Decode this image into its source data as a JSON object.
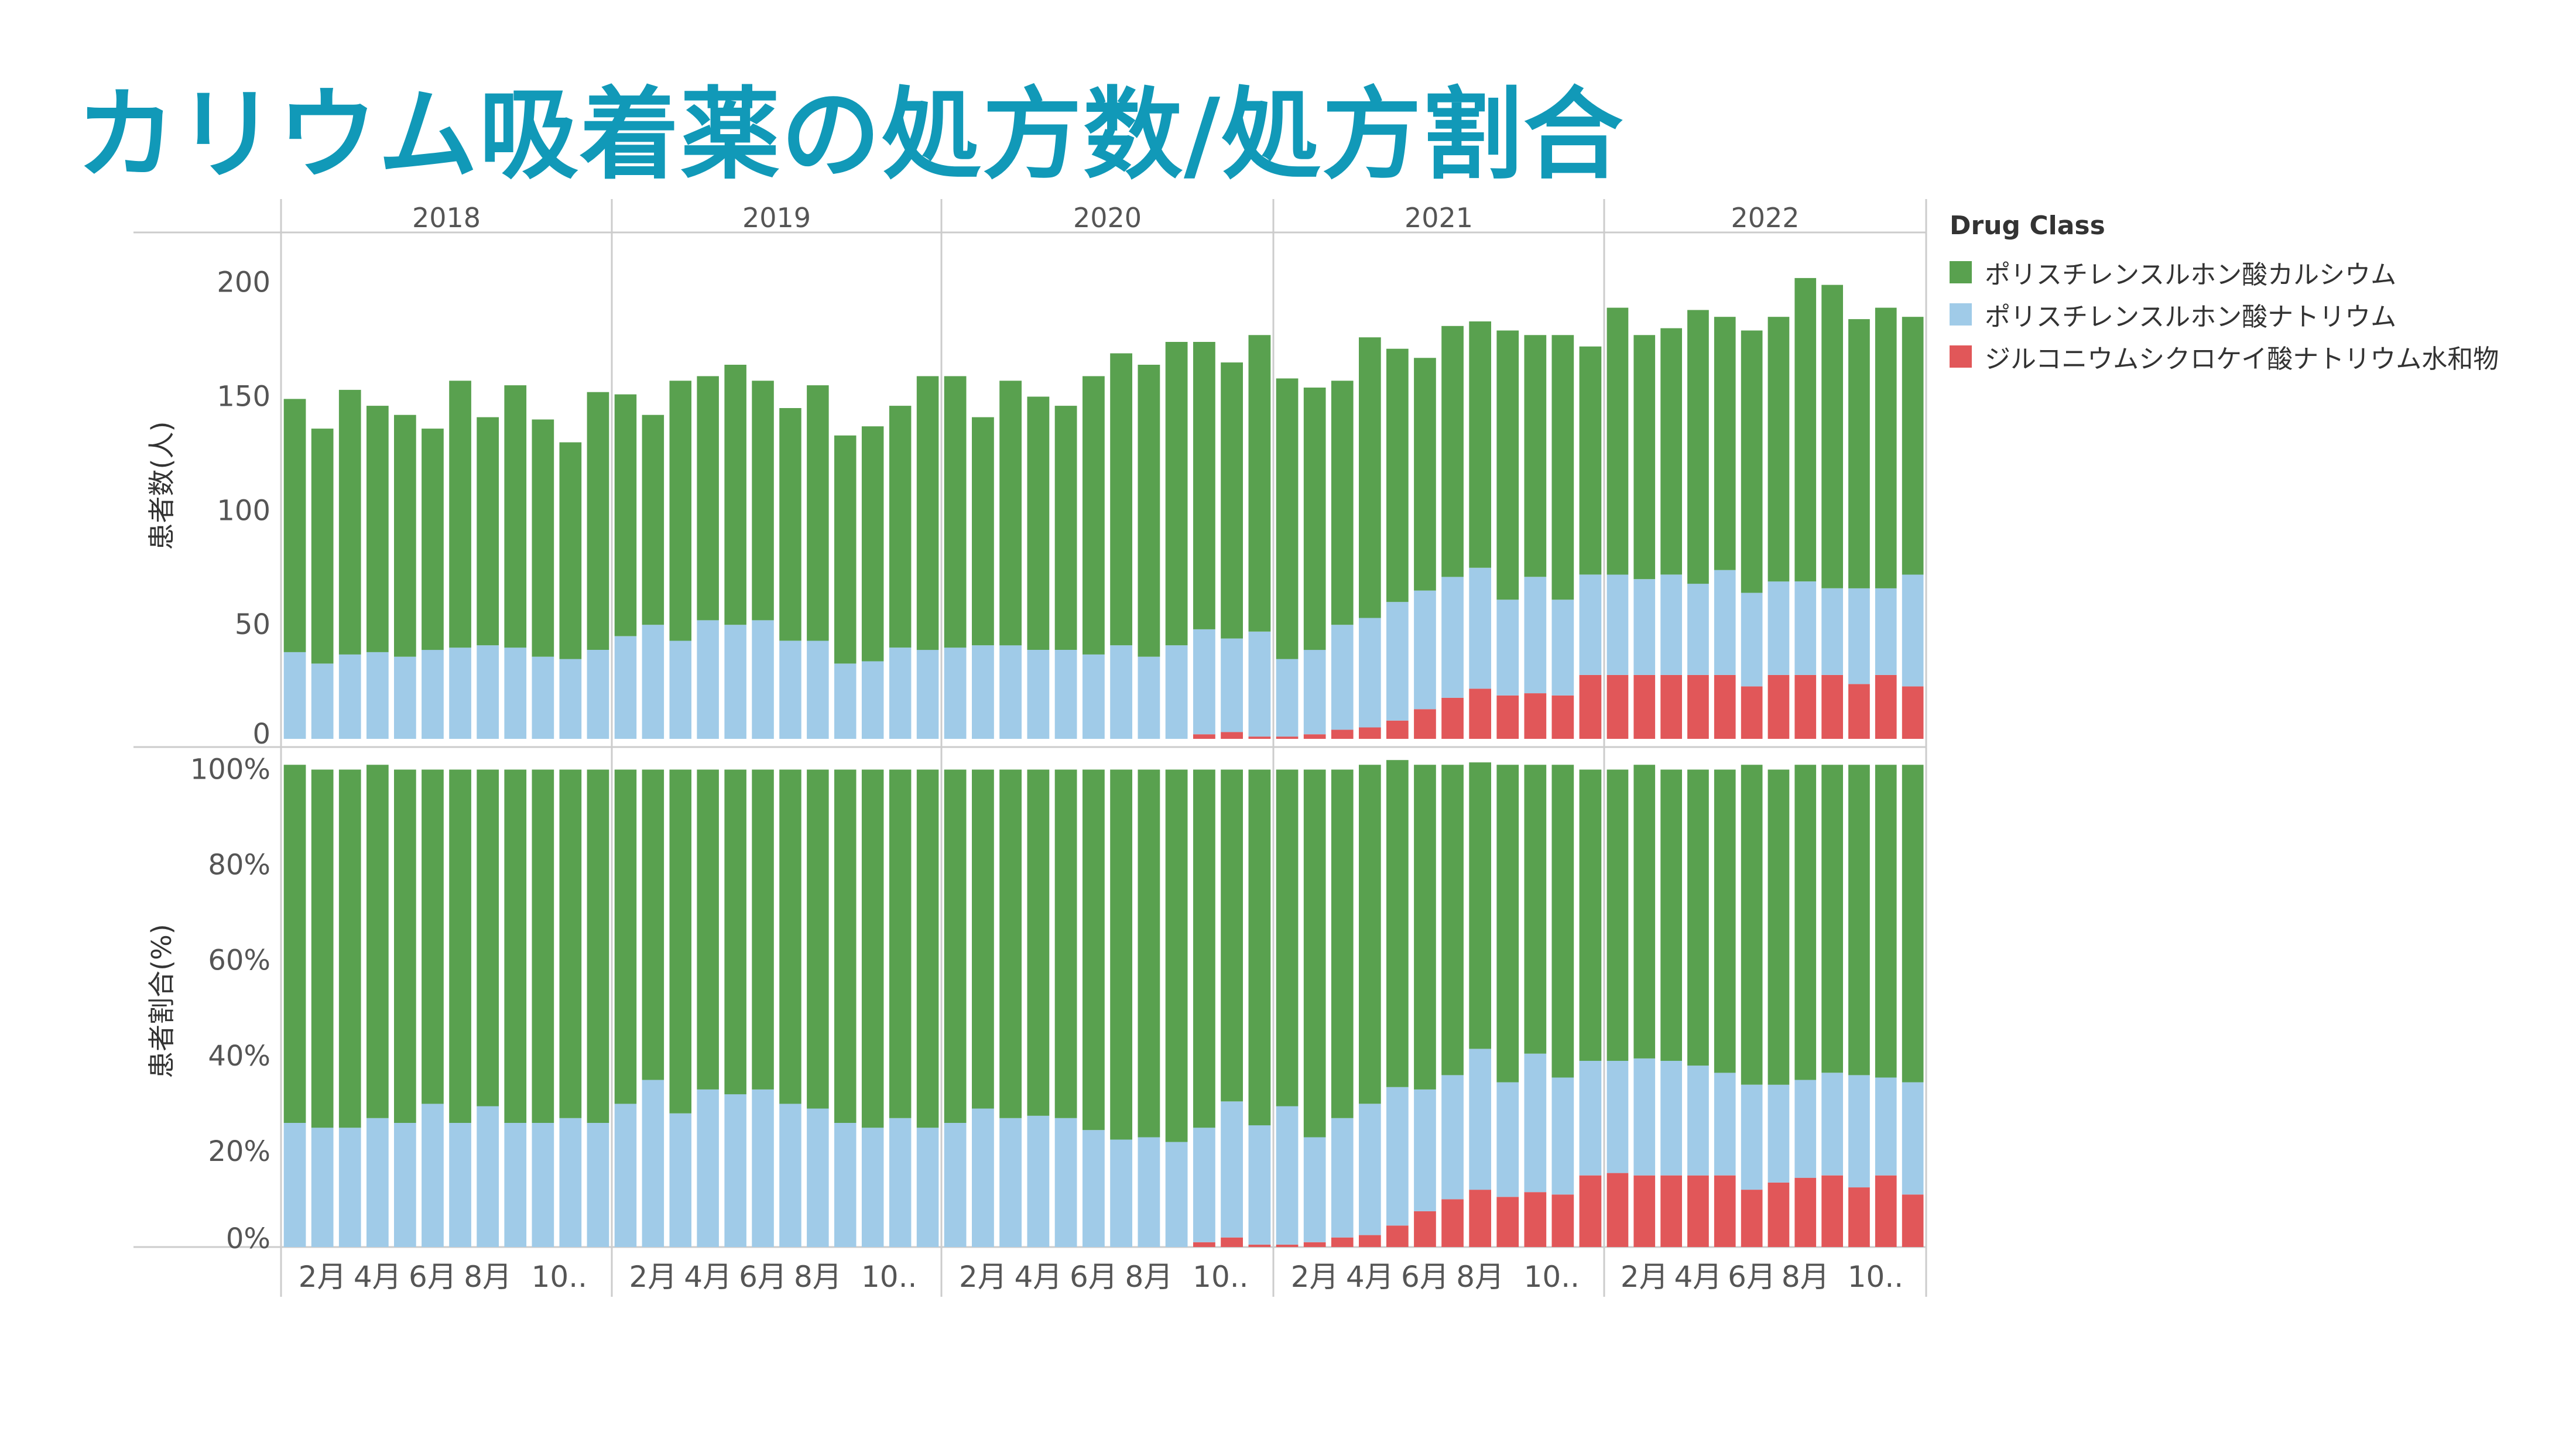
{
  "title": "カリウム吸着薬の処方数/処方割合",
  "legend": {
    "title": "Drug Class",
    "items": [
      {
        "label": "ポリスチレンスルホン酸カルシウム",
        "color": "#59a14f"
      },
      {
        "label": "ポリスチレンスルホン酸ナトリウム",
        "color": "#a0cbe8"
      },
      {
        "label": "ジルコニウムシクロケイ酸ナトリウム水和物",
        "color": "#e15759"
      }
    ]
  },
  "chart_data": [
    {
      "type": "bar",
      "stacked": true,
      "ylabel": "患者数(人)",
      "yticks": [
        0,
        50,
        100,
        150,
        200
      ],
      "ylim": [
        0,
        222
      ],
      "years": [
        "2018",
        "2019",
        "2020",
        "2021",
        "2022"
      ],
      "month_ticks": [
        "2月",
        "4月",
        "6月",
        "8月",
        "10.."
      ],
      "series": [
        {
          "name": "ジルコニウムシクロケイ酸ナトリウム水和物",
          "values": [
            0,
            0,
            0,
            0,
            0,
            0,
            0,
            0,
            0,
            0,
            0,
            0,
            0,
            0,
            0,
            0,
            0,
            0,
            0,
            0,
            0,
            0,
            0,
            0,
            0,
            0,
            0,
            0,
            0,
            0,
            0,
            0,
            0,
            2,
            3,
            1,
            1,
            2,
            4,
            5,
            8,
            13,
            18,
            22,
            19,
            20,
            19,
            28,
            28,
            28,
            28,
            28,
            28,
            23,
            28,
            28,
            28,
            24,
            28,
            23
          ]
        },
        {
          "name": "ポリスチレンスルホン酸ナトリウム",
          "values": [
            38,
            33,
            37,
            38,
            36,
            39,
            40,
            41,
            40,
            36,
            35,
            39,
            45,
            50,
            43,
            52,
            50,
            52,
            43,
            43,
            33,
            34,
            40,
            39,
            40,
            41,
            41,
            39,
            39,
            37,
            41,
            36,
            41,
            46,
            41,
            46,
            34,
            37,
            46,
            48,
            52,
            52,
            53,
            53,
            42,
            51,
            42,
            44,
            44,
            42,
            44,
            40,
            46,
            41,
            41,
            41,
            38,
            42,
            38,
            49
          ]
        },
        {
          "name": "ポリスチレンスルホン酸カルシウム",
          "values": [
            111,
            103,
            116,
            108,
            106,
            97,
            117,
            100,
            115,
            104,
            95,
            113,
            106,
            92,
            114,
            107,
            114,
            105,
            102,
            112,
            100,
            103,
            106,
            120,
            119,
            100,
            116,
            111,
            107,
            122,
            128,
            128,
            133,
            126,
            121,
            130,
            123,
            115,
            107,
            123,
            111,
            102,
            110,
            108,
            118,
            106,
            116,
            100,
            117,
            107,
            108,
            120,
            111,
            115,
            116,
            133,
            133,
            118,
            123,
            113
          ]
        }
      ]
    },
    {
      "type": "bar",
      "stacked": true,
      "ylabel": "患者割合(%)",
      "yticks": [
        "0%",
        "20%",
        "40%",
        "60%",
        "80%",
        "100%"
      ],
      "ylim": [
        0,
        103
      ],
      "series": [
        {
          "name": "ジルコニウムシクロケイ酸ナトリウム水和物",
          "values": [
            0,
            0,
            0,
            0,
            0,
            0,
            0,
            0,
            0,
            0,
            0,
            0,
            0,
            0,
            0,
            0,
            0,
            0,
            0,
            0,
            0,
            0,
            0,
            0,
            0,
            0,
            0,
            0,
            0,
            0,
            0,
            0,
            0,
            1,
            2,
            0.5,
            0.5,
            1,
            2,
            2.5,
            4.5,
            7.5,
            10,
            12,
            10.5,
            11.5,
            11,
            15,
            15.5,
            15,
            15,
            15,
            15,
            12,
            13.5,
            14.5,
            15,
            12.5,
            15,
            11
          ]
        },
        {
          "name": "ポリスチレンスルホン酸ナトリウム",
          "values": [
            26,
            25,
            25,
            27,
            26,
            30,
            26,
            29.5,
            26,
            26,
            27,
            26,
            30,
            35,
            28,
            33,
            32,
            33,
            30,
            29,
            26,
            25,
            27,
            25,
            26,
            29,
            27,
            27.5,
            27,
            24.5,
            22.5,
            23,
            22,
            24,
            28.5,
            25,
            29,
            22,
            25,
            27.5,
            29,
            25.5,
            26,
            29.5,
            24,
            29,
            24.5,
            24,
            23.5,
            24.5,
            24,
            23,
            21.5,
            22,
            20.5,
            20.5,
            21.5,
            23.5,
            20.5,
            23.5
          ]
        },
        {
          "name": "ポリスチレンスルホン酸カルシウム",
          "values": [
            75,
            75,
            75,
            74,
            74,
            70,
            74,
            70.5,
            74,
            74,
            73,
            74,
            70,
            65,
            72,
            67,
            68,
            67,
            70,
            71,
            74,
            75,
            73,
            75,
            74,
            71,
            73,
            72.5,
            73,
            75.5,
            77.5,
            77,
            78,
            75,
            69.5,
            74.5,
            70.5,
            77,
            73,
            71,
            68.5,
            68,
            65,
            60,
            66.5,
            60.5,
            65.5,
            61,
            61,
            61.5,
            61,
            62,
            63.5,
            67,
            66,
            66,
            64.5,
            65,
            65.5,
            66.5
          ]
        }
      ]
    }
  ]
}
